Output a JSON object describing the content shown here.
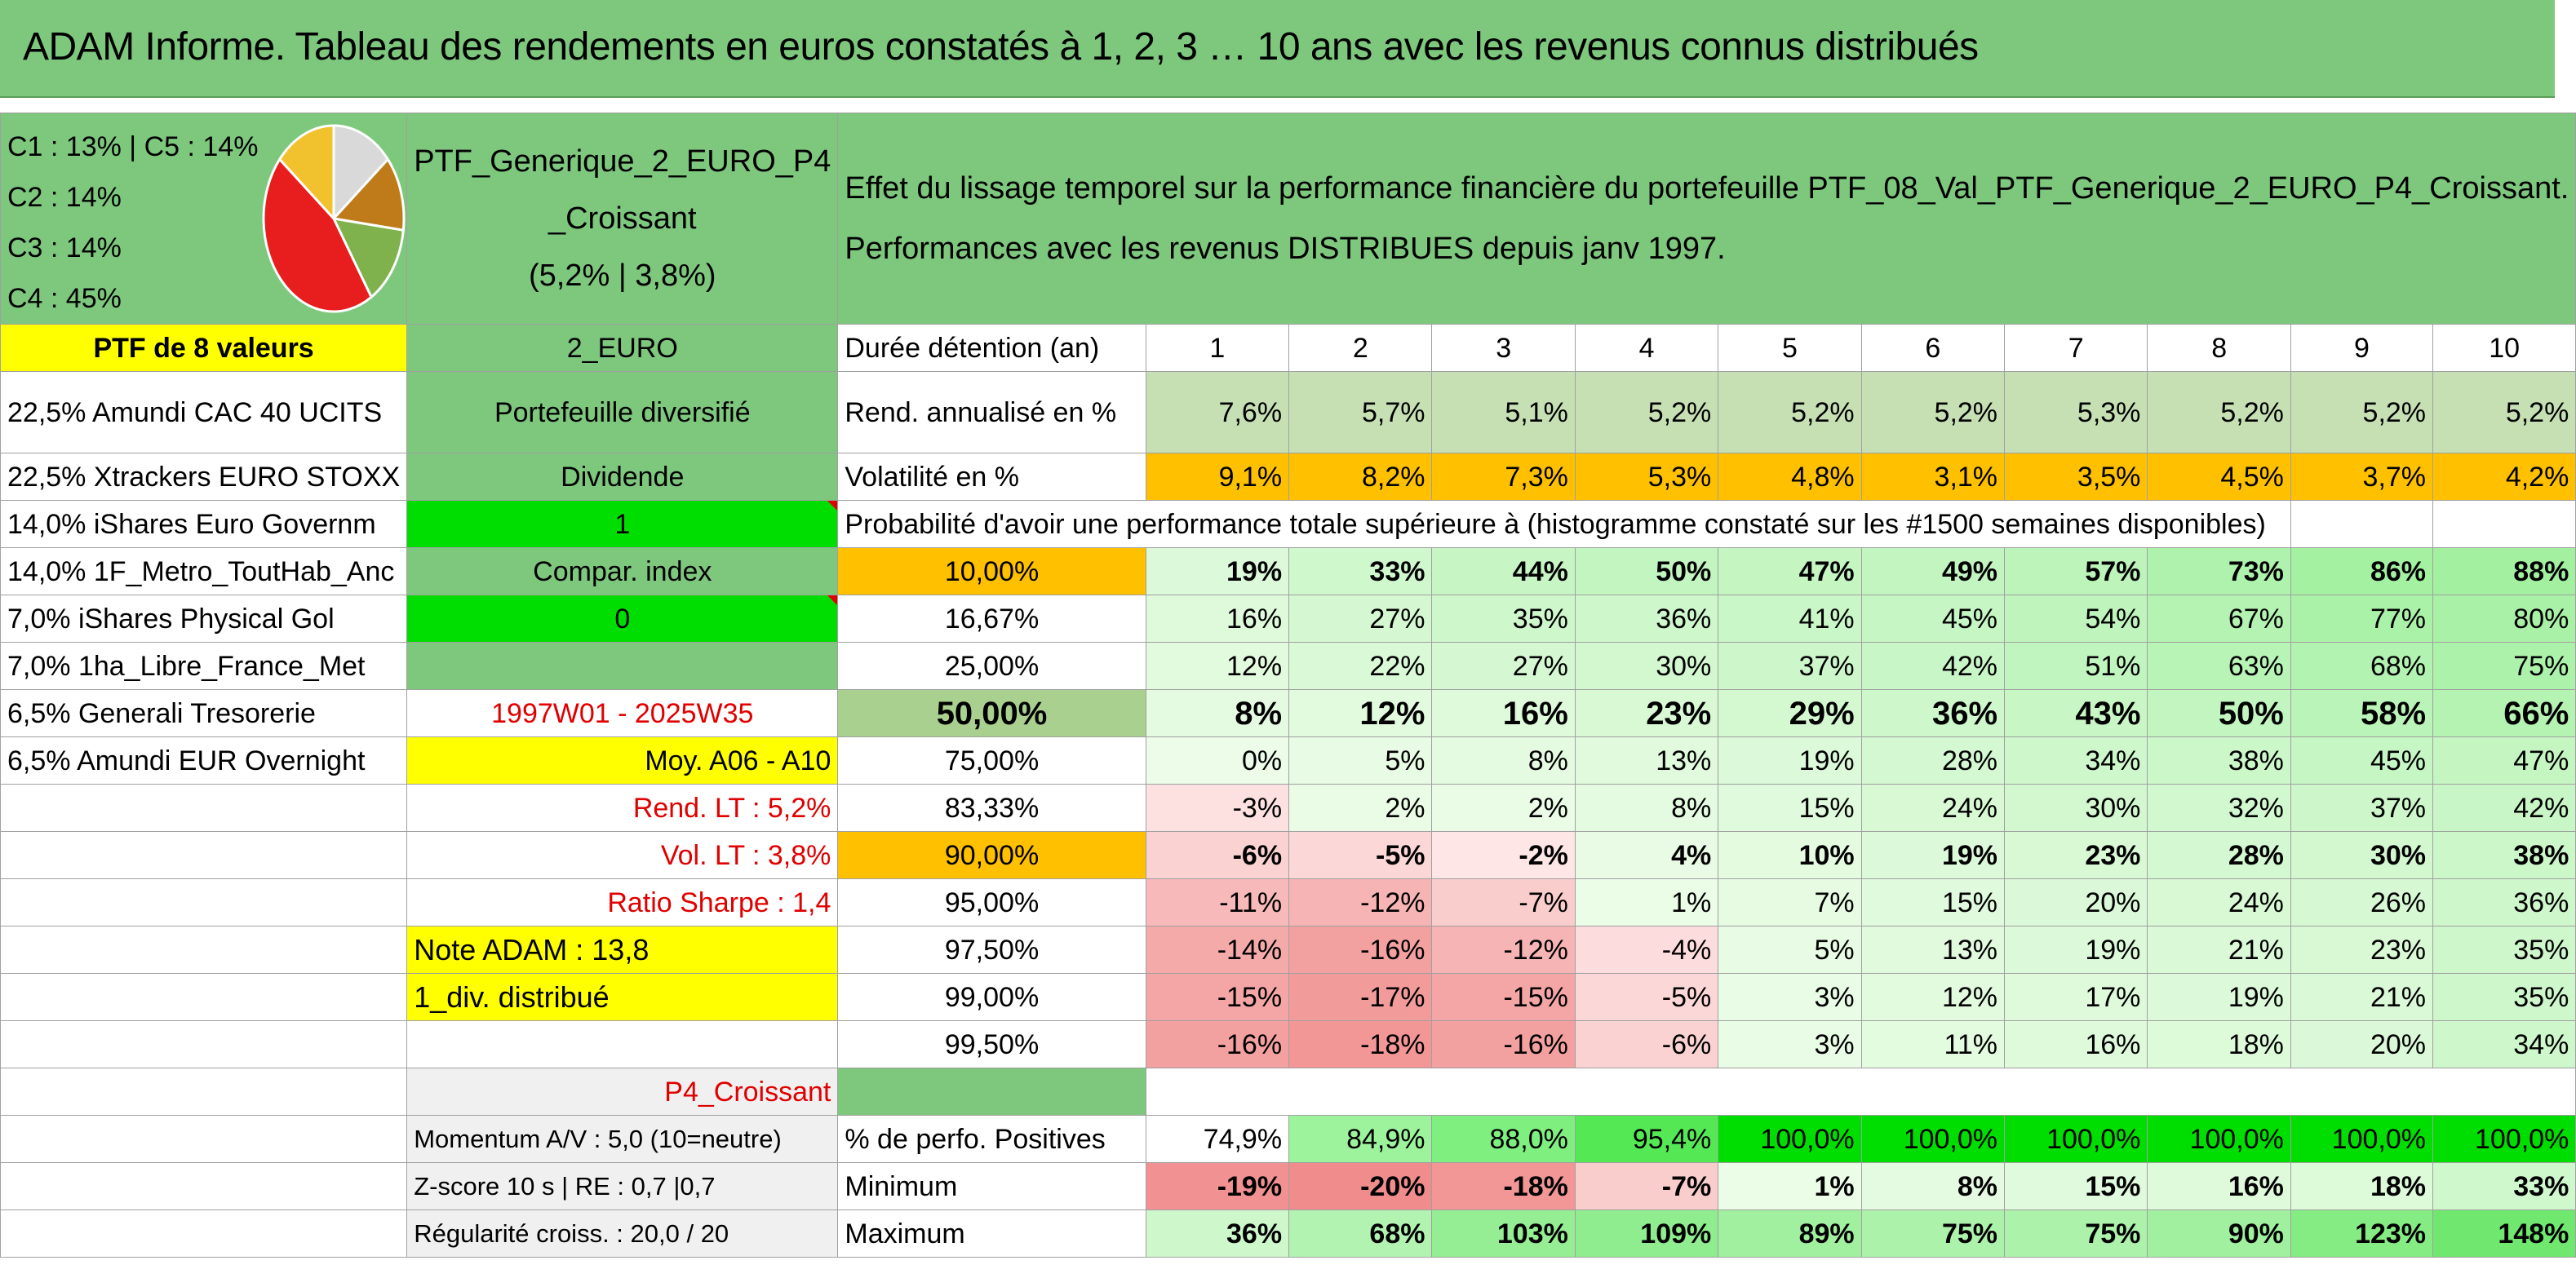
{
  "title": "ADAM Informe. Tableau des rendements en euros constatés à 1, 2, 3 … 10 ans avec les revenus connus distribués",
  "classes": [
    "C1 : 13% | C5 : 14%",
    "C2 : 14%",
    "C3 : 14%",
    "C4 : 45%"
  ],
  "pie": {
    "slices": [
      {
        "name": "C1",
        "value": 13,
        "color": "#bf7a1a"
      },
      {
        "name": "C2",
        "value": 14,
        "color": "#7fb24c"
      },
      {
        "name": "C3",
        "value": 14,
        "color": "#f2c12e"
      },
      {
        "name": "C4",
        "value": 45,
        "color": "#e81d1d"
      },
      {
        "name": "C5",
        "value": 14,
        "color": "#d9d9d9"
      }
    ]
  },
  "portfolio": {
    "name_line1": "PTF_Generique_2_EURO_P4",
    "name_line2": "_Croissant",
    "stats": "(5,2% | 3,8%)",
    "description_line1": "Effet du lissage temporel sur la performance financière du portefeuille PTF_08_Val_PTF_Generique_2_EURO_P4_Croissant.",
    "description_line2": "Performances avec les revenus DISTRIBUES depuis janv 1997.",
    "count_label": "PTF de 8 valeurs",
    "currency": "2_EURO",
    "type": "Portefeuille diversifié",
    "dividend_label": "Dividende",
    "dividend_value": "1",
    "compar_label": "Compar. index",
    "compar_value": "0",
    "period": "1997W01 - 2025W35",
    "moy": "Moy. A06 - A10",
    "rend_lt": "Rend. LT : 5,2%",
    "vol_lt": "Vol. LT : 3,8%",
    "sharpe": "Ratio Sharpe : 1,4",
    "note": "Note ADAM : 13,8",
    "div_distrib": "1_div. distribué",
    "profile": "P4_Croissant",
    "momentum": "Momentum A/V : 5,0 (10=neutre)",
    "zscore": "Z-score 10 s | RE : 0,7 |0,7",
    "regularite": "Régularité croiss. : 20,0 / 20"
  },
  "holdings": [
    "22,5% Amundi CAC 40 UCITS",
    "22,5% Xtrackers EURO STOXX",
    "14,0% iShares Euro Governm",
    "14,0% 1F_Metro_ToutHab_Anc",
    "7,0% iShares Physical Gol",
    "7,0% 1ha_Libre_France_Met",
    "6,5% Generali Tresorerie",
    "6,5% Amundi EUR Overnight"
  ],
  "table": {
    "duration_label": "Durée détention (an)",
    "years": [
      "1",
      "2",
      "3",
      "4",
      "5",
      "6",
      "7",
      "8",
      "9",
      "10"
    ],
    "rend_label": "Rend. annualisé en %",
    "rend": [
      "7,6%",
      "5,7%",
      "5,1%",
      "5,2%",
      "5,2%",
      "5,2%",
      "5,3%",
      "5,2%",
      "5,2%",
      "5,2%"
    ],
    "vol_label": "Volatilité en %",
    "vol": [
      "9,1%",
      "8,2%",
      "7,3%",
      "5,3%",
      "4,8%",
      "3,1%",
      "3,5%",
      "4,5%",
      "3,7%",
      "4,2%"
    ],
    "proba_label": "Probabilité d'avoir une performance totale supérieure à (histogramme constaté sur les #1500 semaines disponibles)",
    "proba_rows": [
      {
        "pct": "10,00%",
        "values": [
          "19%",
          "33%",
          "44%",
          "50%",
          "47%",
          "49%",
          "57%",
          "73%",
          "86%",
          "88%"
        ]
      },
      {
        "pct": "16,67%",
        "values": [
          "16%",
          "27%",
          "35%",
          "36%",
          "41%",
          "45%",
          "54%",
          "67%",
          "77%",
          "80%"
        ]
      },
      {
        "pct": "25,00%",
        "values": [
          "12%",
          "22%",
          "27%",
          "30%",
          "37%",
          "42%",
          "51%",
          "63%",
          "68%",
          "75%"
        ]
      },
      {
        "pct": "50,00%",
        "values": [
          "8%",
          "12%",
          "16%",
          "23%",
          "29%",
          "36%",
          "43%",
          "50%",
          "58%",
          "66%"
        ]
      },
      {
        "pct": "75,00%",
        "values": [
          "0%",
          "5%",
          "8%",
          "13%",
          "19%",
          "28%",
          "34%",
          "38%",
          "45%",
          "47%"
        ]
      },
      {
        "pct": "83,33%",
        "values": [
          "-3%",
          "2%",
          "2%",
          "8%",
          "15%",
          "24%",
          "30%",
          "32%",
          "37%",
          "42%"
        ]
      },
      {
        "pct": "90,00%",
        "values": [
          "-6%",
          "-5%",
          "-2%",
          "4%",
          "10%",
          "19%",
          "23%",
          "28%",
          "30%",
          "38%"
        ]
      },
      {
        "pct": "95,00%",
        "values": [
          "-11%",
          "-12%",
          "-7%",
          "1%",
          "7%",
          "15%",
          "20%",
          "24%",
          "26%",
          "36%"
        ]
      },
      {
        "pct": "97,50%",
        "values": [
          "-14%",
          "-16%",
          "-12%",
          "-4%",
          "5%",
          "13%",
          "19%",
          "21%",
          "23%",
          "35%"
        ]
      },
      {
        "pct": "99,00%",
        "values": [
          "-15%",
          "-17%",
          "-15%",
          "-5%",
          "3%",
          "12%",
          "17%",
          "19%",
          "21%",
          "35%"
        ]
      },
      {
        "pct": "99,50%",
        "values": [
          "-16%",
          "-18%",
          "-16%",
          "-6%",
          "3%",
          "11%",
          "16%",
          "18%",
          "20%",
          "34%"
        ]
      }
    ],
    "pos_label": "% de perfo. Positives",
    "pos": [
      "74,9%",
      "84,9%",
      "88,0%",
      "95,4%",
      "100,0%",
      "100,0%",
      "100,0%",
      "100,0%",
      "100,0%",
      "100,0%"
    ],
    "min_label": "Minimum",
    "min": [
      "-19%",
      "-20%",
      "-18%",
      "-7%",
      "1%",
      "8%",
      "15%",
      "16%",
      "18%",
      "33%"
    ],
    "max_label": "Maximum",
    "max": [
      "36%",
      "68%",
      "103%",
      "109%",
      "89%",
      "75%",
      "75%",
      "90%",
      "123%",
      "148%"
    ]
  },
  "colors": {
    "header_green": "#7ec87e",
    "highlight_yellow": "#ffff00",
    "highlight_orange": "#ffc000",
    "bright_green": "#00dd00",
    "alert_red": "#e00000"
  }
}
